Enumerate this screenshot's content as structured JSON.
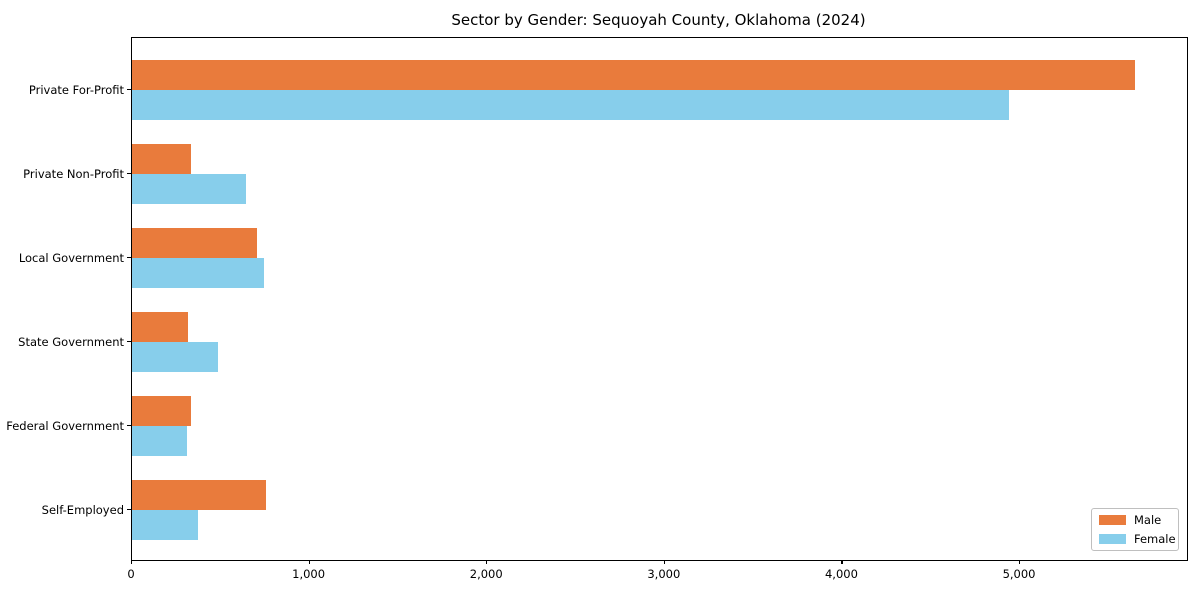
{
  "chart_data": {
    "type": "bar",
    "orientation": "horizontal",
    "title": "Sector by Gender: Sequoyah County, Oklahoma (2024)",
    "categories": [
      "Private For-Profit",
      "Private Non-Profit",
      "Local Government",
      "State Government",
      "Federal Government",
      "Self-Employed"
    ],
    "series": [
      {
        "name": "Male",
        "color": "#E97B3C",
        "values": [
          5650,
          330,
          705,
          315,
          330,
          755
        ]
      },
      {
        "name": "Female",
        "color": "#87CEEB",
        "values": [
          4940,
          640,
          745,
          485,
          310,
          370
        ]
      }
    ],
    "xlabel": "",
    "ylabel": "",
    "xlim": [
      0,
      5940
    ],
    "x_ticks": [
      0,
      1000,
      2000,
      3000,
      4000,
      5000
    ],
    "x_tick_labels": [
      "0",
      "1,000",
      "2,000",
      "3,000",
      "4,000",
      "5,000"
    ],
    "grid": false,
    "legend": {
      "position": "lower-right",
      "entries": [
        "Male",
        "Female"
      ]
    },
    "colors": {
      "background": "#FFFFFF",
      "axis": "#000000",
      "legend_border": "#BFBFBF"
    }
  }
}
